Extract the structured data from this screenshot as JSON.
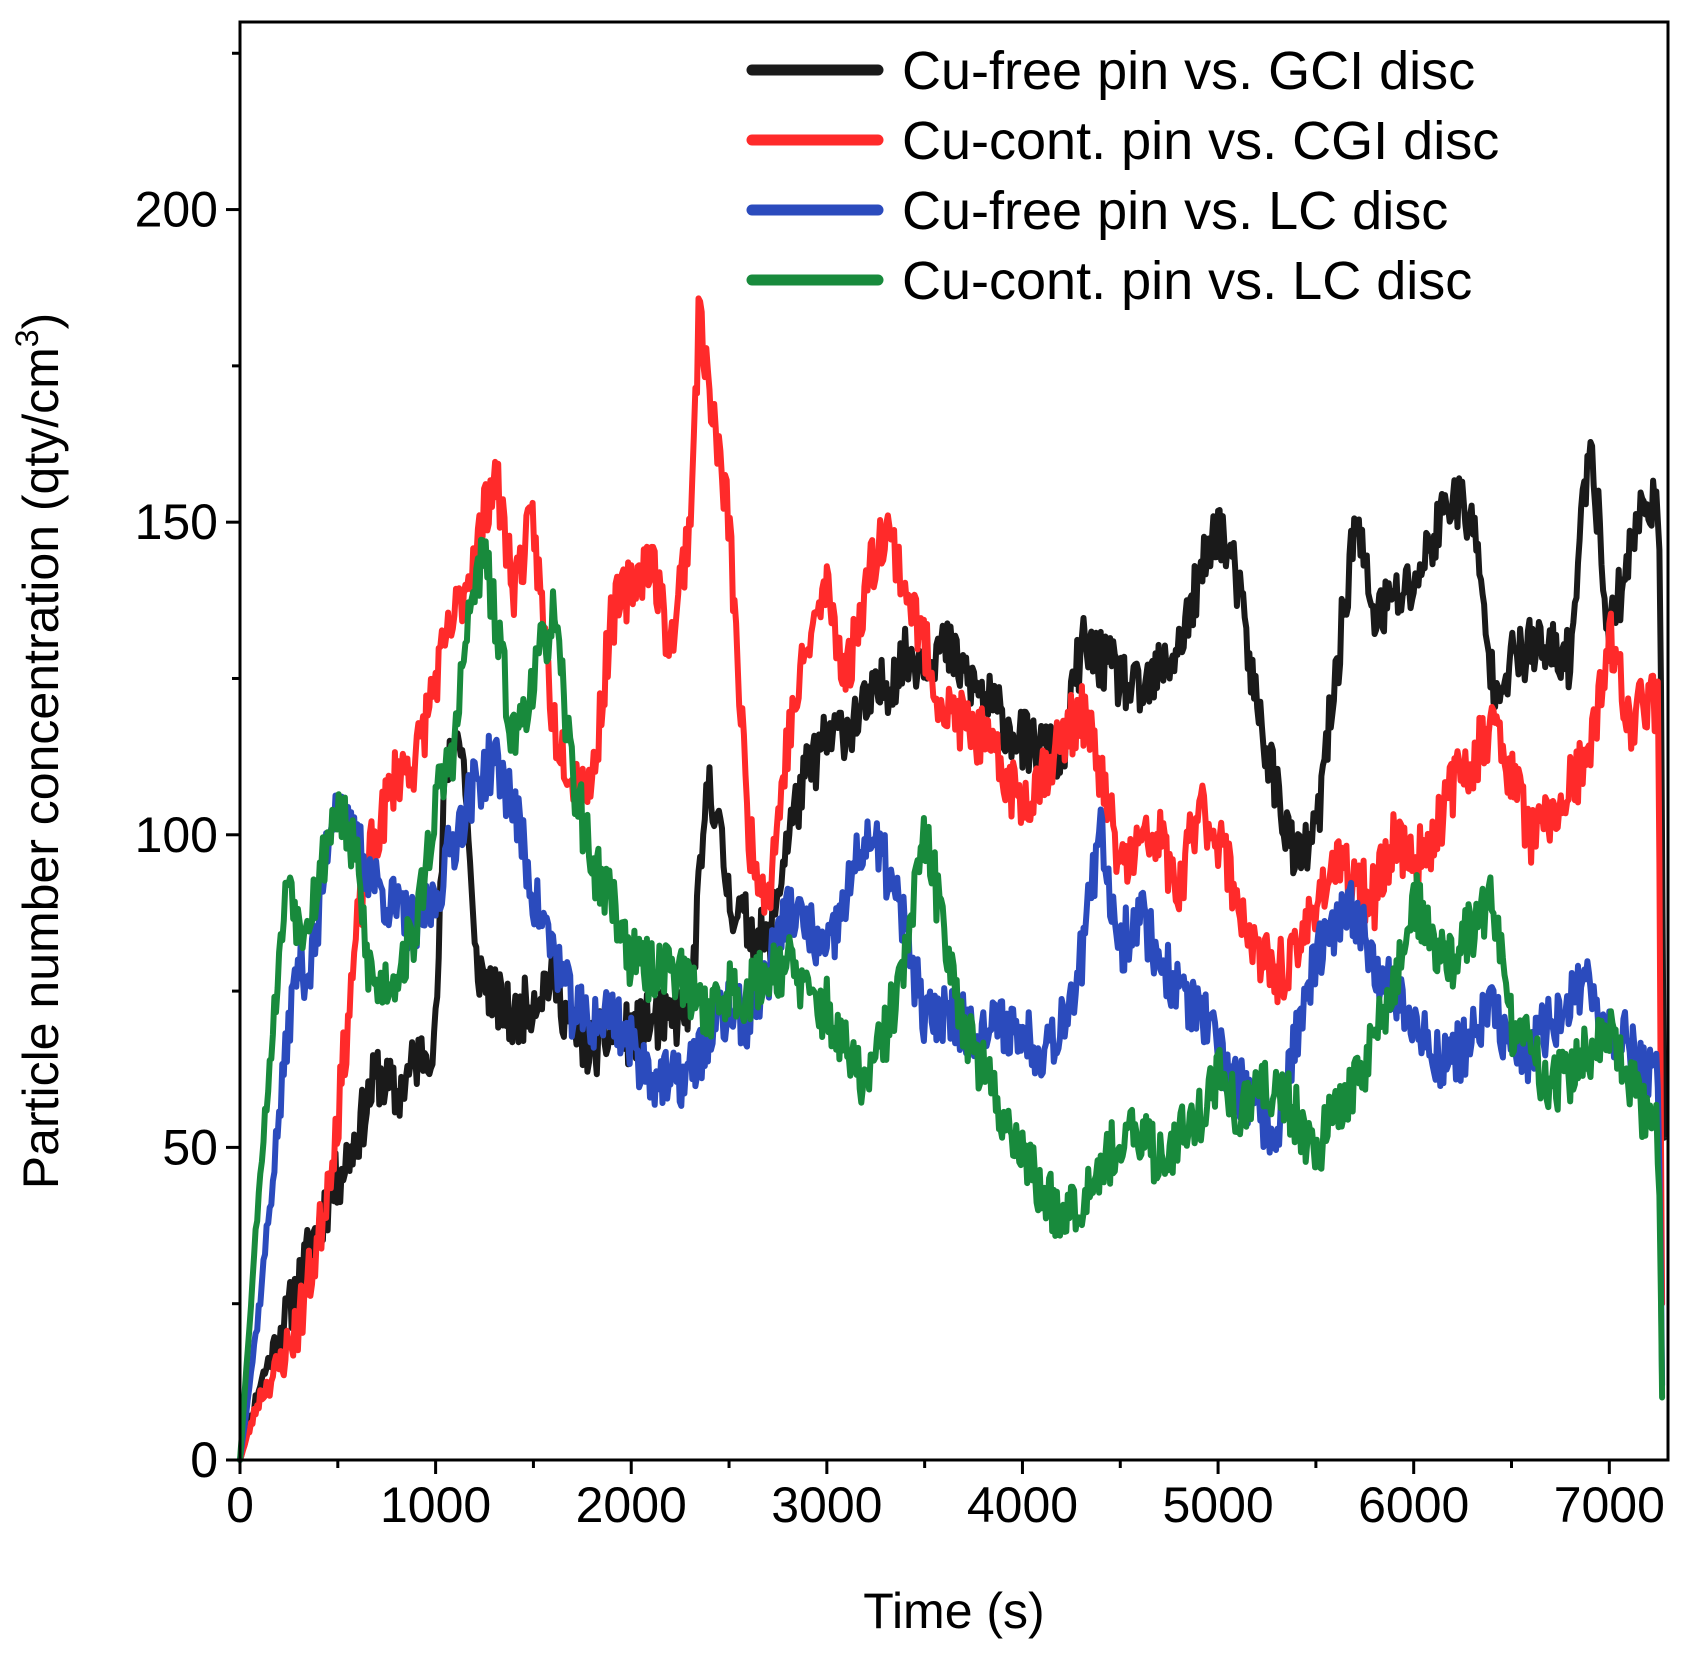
{
  "chart_data": {
    "type": "line",
    "title": "",
    "xlabel": "Time (s)",
    "ylabel_main": "Particle number concentration (qty/cm",
    "ylabel_sup": "3",
    "ylabel_close": ")",
    "xlim": [
      0,
      7300
    ],
    "ylim": [
      0,
      230
    ],
    "xticks": [
      0,
      1000,
      2000,
      3000,
      4000,
      5000,
      6000,
      7000
    ],
    "xtick_labels": [
      "0",
      "1000",
      "2000",
      "3000",
      "4000",
      "5000",
      "6000",
      "7000"
    ],
    "yticks": [
      0,
      50,
      100,
      150,
      200
    ],
    "ytick_labels": [
      "0",
      "50",
      "100",
      "150",
      "200"
    ],
    "legend_position": "top-right",
    "series": [
      {
        "name": "Cu-free pin vs. GCI disc",
        "color": "#1a1a1a",
        "noise": 5,
        "seed": 11,
        "x": [
          0,
          100,
          200,
          300,
          400,
          500,
          600,
          700,
          800,
          900,
          1000,
          1050,
          1100,
          1150,
          1200,
          1300,
          1400,
          1500,
          1600,
          1700,
          1800,
          1900,
          2000,
          2100,
          2200,
          2300,
          2400,
          2500,
          2600,
          2700,
          2800,
          2900,
          3000,
          3200,
          3400,
          3600,
          3800,
          4000,
          4200,
          4300,
          4400,
          4600,
          4800,
          5000,
          5100,
          5200,
          5400,
          5500,
          5600,
          5700,
          5800,
          6000,
          6200,
          6300,
          6400,
          6600,
          6800,
          6900,
          7000,
          7100,
          7200,
          7250,
          7260,
          7280
        ],
        "y": [
          0,
          12,
          20,
          28,
          38,
          45,
          52,
          62,
          58,
          64,
          68,
          110,
          118,
          110,
          80,
          74,
          70,
          74,
          78,
          68,
          66,
          68,
          68,
          70,
          70,
          73,
          110,
          90,
          85,
          82,
          100,
          110,
          115,
          120,
          128,
          130,
          122,
          115,
          112,
          130,
          128,
          122,
          130,
          150,
          140,
          120,
          95,
          100,
          125,
          150,
          135,
          140,
          155,
          150,
          125,
          130,
          128,
          165,
          132,
          145,
          155,
          150,
          135,
          55
        ]
      },
      {
        "name": "Cu-cont. pin vs. CGI disc",
        "color": "#ff2a2a",
        "noise": 5,
        "seed": 23,
        "x": [
          0,
          100,
          200,
          300,
          400,
          500,
          600,
          650,
          700,
          800,
          900,
          1000,
          1100,
          1200,
          1300,
          1400,
          1500,
          1600,
          1700,
          1800,
          1900,
          2000,
          2100,
          2200,
          2300,
          2350,
          2400,
          2500,
          2600,
          2700,
          2800,
          2900,
          3000,
          3100,
          3200,
          3300,
          3400,
          3500,
          3600,
          3700,
          3800,
          3900,
          4000,
          4100,
          4200,
          4300,
          4400,
          4500,
          4600,
          4700,
          4800,
          4900,
          5000,
          5100,
          5200,
          5300,
          5400,
          5500,
          5600,
          5700,
          5800,
          5900,
          6000,
          6100,
          6200,
          6300,
          6400,
          6500,
          6600,
          6700,
          6800,
          6900,
          7000,
          7100,
          7200,
          7250,
          7270
        ],
        "y": [
          0,
          10,
          15,
          22,
          35,
          55,
          85,
          95,
          100,
          110,
          112,
          125,
          135,
          145,
          158,
          140,
          150,
          118,
          110,
          108,
          135,
          140,
          145,
          130,
          150,
          185,
          170,
          150,
          100,
          90,
          115,
          130,
          140,
          125,
          140,
          150,
          140,
          130,
          120,
          118,
          115,
          110,
          105,
          110,
          115,
          120,
          110,
          95,
          98,
          100,
          90,
          105,
          100,
          90,
          80,
          78,
          80,
          90,
          95,
          92,
          90,
          100,
          95,
          100,
          108,
          112,
          118,
          110,
          100,
          102,
          108,
          112,
          132,
          118,
          122,
          120,
          25
        ]
      },
      {
        "name": "Cu-free pin vs. LC disc",
        "color": "#2b4bbd",
        "noise": 5,
        "seed": 37,
        "x": [
          0,
          100,
          200,
          250,
          300,
          350,
          400,
          450,
          500,
          550,
          600,
          700,
          800,
          900,
          1000,
          1100,
          1200,
          1300,
          1400,
          1500,
          1600,
          1700,
          1800,
          1900,
          2000,
          2100,
          2200,
          2300,
          2400,
          2500,
          2600,
          2700,
          2800,
          2900,
          3000,
          3100,
          3200,
          3300,
          3400,
          3500,
          3600,
          3700,
          3800,
          3900,
          4000,
          4100,
          4200,
          4300,
          4400,
          4500,
          4600,
          4700,
          4800,
          4900,
          5000,
          5100,
          5200,
          5300,
          5400,
          5500,
          5600,
          5700,
          5800,
          5900,
          6000,
          6100,
          6200,
          6300,
          6400,
          6500,
          6600,
          6700,
          6800,
          6900,
          7000,
          7100,
          7200,
          7250,
          7270
        ],
        "y": [
          0,
          25,
          55,
          70,
          80,
          78,
          85,
          100,
          108,
          100,
          98,
          92,
          88,
          85,
          90,
          100,
          108,
          112,
          105,
          90,
          82,
          72,
          70,
          72,
          66,
          62,
          60,
          62,
          68,
          72,
          70,
          78,
          88,
          85,
          80,
          90,
          100,
          95,
          85,
          70,
          72,
          70,
          68,
          70,
          68,
          66,
          70,
          80,
          100,
          82,
          88,
          80,
          75,
          72,
          65,
          60,
          55,
          52,
          68,
          80,
          85,
          88,
          80,
          75,
          70,
          65,
          64,
          68,
          72,
          66,
          65,
          70,
          74,
          75,
          70,
          66,
          62,
          60,
          12
        ]
      },
      {
        "name": "Cu-cont. pin vs. LC disc",
        "color": "#188a3c",
        "noise": 5,
        "seed": 53,
        "x": [
          0,
          100,
          200,
          250,
          300,
          400,
          450,
          500,
          550,
          600,
          650,
          700,
          800,
          900,
          1000,
          1100,
          1150,
          1200,
          1250,
          1300,
          1400,
          1500,
          1550,
          1600,
          1700,
          1800,
          1900,
          2000,
          2100,
          2200,
          2300,
          2400,
          2500,
          2600,
          2700,
          2800,
          2900,
          3000,
          3100,
          3200,
          3300,
          3400,
          3500,
          3600,
          3700,
          3800,
          3900,
          4000,
          4100,
          4200,
          4300,
          4400,
          4500,
          4600,
          4700,
          4800,
          4900,
          5000,
          5100,
          5200,
          5300,
          5400,
          5500,
          5600,
          5700,
          5800,
          5900,
          6000,
          6100,
          6200,
          6300,
          6400,
          6500,
          6600,
          6700,
          6800,
          6900,
          7000,
          7100,
          7200,
          7250,
          7270
        ],
        "y": [
          0,
          45,
          80,
          95,
          85,
          92,
          100,
          105,
          100,
          95,
          80,
          75,
          78,
          85,
          105,
          115,
          130,
          140,
          145,
          135,
          115,
          125,
          130,
          135,
          110,
          95,
          90,
          80,
          78,
          80,
          75,
          72,
          75,
          75,
          78,
          80,
          74,
          72,
          65,
          60,
          68,
          80,
          100,
          85,
          70,
          62,
          55,
          50,
          42,
          40,
          42,
          48,
          50,
          52,
          48,
          52,
          55,
          62,
          55,
          58,
          60,
          55,
          50,
          55,
          60,
          68,
          75,
          90,
          82,
          80,
          85,
          90,
          70,
          65,
          60,
          62,
          65,
          68,
          60,
          55,
          52,
          10
        ]
      }
    ]
  }
}
